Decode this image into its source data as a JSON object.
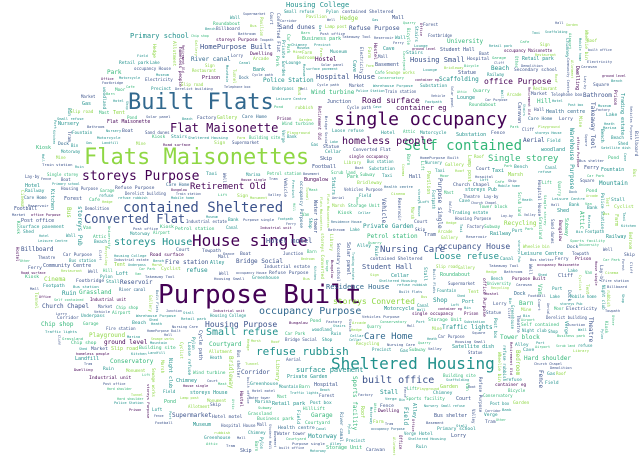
{
  "word_cloud": {
    "palette": {
      "dark_purple": "#440154",
      "indigo": "#3b528b",
      "blue": "#31688e",
      "teal": "#21918c",
      "green": "#35b779",
      "lime": "#8fd744",
      "yellow": "#d8e219"
    },
    "words": [
      {
        "text": "Purpose Built",
        "color": "dark_purple"
      },
      {
        "text": "Flats Maisonettes",
        "color": "lime"
      },
      {
        "text": "Built Flats",
        "color": "blue"
      },
      {
        "text": "single occupancy",
        "color": "dark_purple"
      },
      {
        "text": "House single",
        "color": "dark_purple"
      },
      {
        "text": "Sheltered Housing",
        "color": "teal"
      },
      {
        "text": "contained Sheltered",
        "color": "indigo"
      },
      {
        "text": "Self contained",
        "color": "green"
      },
      {
        "text": "storeys Purpose",
        "color": "dark_purple"
      },
      {
        "text": "Flat Maisonette",
        "color": "dark_purple"
      },
      {
        "text": "Converted Flat",
        "color": "indigo"
      },
      {
        "text": "refuse rubbish",
        "color": "teal"
      },
      {
        "text": "occupancy Purpose",
        "color": "blue"
      },
      {
        "text": "storeys House",
        "color": "teal"
      },
      {
        "text": "Care Home",
        "color": "blue"
      },
      {
        "text": "built office",
        "color": "indigo"
      },
      {
        "text": "homeless people",
        "color": "dark_purple"
      },
      {
        "text": "Small refuse",
        "color": "teal"
      },
      {
        "text": "Retirement Old",
        "color": "dark_purple"
      },
      {
        "text": "Housing Purpose",
        "color": "indigo"
      },
      {
        "text": "Nursing Care",
        "color": "indigo"
      },
      {
        "text": "Loose refuse",
        "color": "teal"
      },
      {
        "text": "occupancy House",
        "color": "indigo"
      },
      {
        "text": "Single storey",
        "color": "green"
      },
      {
        "text": "storeys Converted",
        "color": "lime"
      },
      {
        "text": "Road surface",
        "color": "dark_purple"
      },
      {
        "text": "container eg",
        "color": "dark_purple"
      },
      {
        "text": "office Purpose",
        "color": "dark_purple"
      },
      {
        "text": "Hotel motel",
        "color": "indigo"
      },
      {
        "text": "Student Hall",
        "color": "indigo"
      },
      {
        "text": "surface pavement",
        "color": "teal"
      },
      {
        "text": "Residence House",
        "color": "blue"
      },
      {
        "text": "Housing College",
        "color": "teal"
      },
      {
        "text": "HomePurpose Built",
        "color": "indigo"
      },
      {
        "text": "Primary school",
        "color": "teal"
      },
      {
        "text": "Housing Small",
        "color": "indigo"
      },
      {
        "text": "Hospital House",
        "color": "indigo"
      },
      {
        "text": "Storage Unit",
        "color": "green"
      },
      {
        "text": "Church Chapel",
        "color": "indigo"
      },
      {
        "text": "Private Garden",
        "color": "teal"
      },
      {
        "text": "Car Purpose",
        "color": "indigo"
      },
      {
        "text": "Tower block",
        "color": "green"
      },
      {
        "text": "Industrial unit",
        "color": "dark_purple"
      },
      {
        "text": "Leisure Centre",
        "color": "teal"
      },
      {
        "text": "Vehicles Purpose",
        "color": "indigo"
      },
      {
        "text": "Bus station",
        "color": "teal"
      },
      {
        "text": "Bridge Social",
        "color": "indigo"
      },
      {
        "text": "Car Park",
        "color": "green"
      },
      {
        "text": "Takeaway Tool",
        "color": "indigo"
      },
      {
        "text": "Motorcycle",
        "color": "teal"
      },
      {
        "text": "Cyclist",
        "color": "lime"
      },
      {
        "text": "Refuse Purpose",
        "color": "indigo"
      },
      {
        "text": "Police Station",
        "color": "teal"
      },
      {
        "text": "Fire station",
        "color": "indigo"
      },
      {
        "text": "Bungalow",
        "color": "dark_purple"
      },
      {
        "text": "Garage",
        "color": "green"
      },
      {
        "text": "Shed",
        "color": "teal"
      },
      {
        "text": "Tent",
        "color": "lime"
      },
      {
        "text": "Caravan",
        "color": "indigo"
      },
      {
        "text": "Loft",
        "color": "teal"
      },
      {
        "text": "Health centre",
        "color": "blue"
      },
      {
        "text": "Sports facility",
        "color": "green"
      },
      {
        "text": "Community Centre",
        "color": "indigo"
      },
      {
        "text": "Library",
        "color": "lime"
      },
      {
        "text": "Warehouse Purpose",
        "color": "teal"
      },
      {
        "text": "Scrub land",
        "color": "green"
      },
      {
        "text": "occupancy Maisonette",
        "color": "dark_purple"
      },
      {
        "text": "Purpose single",
        "color": "indigo"
      },
      {
        "text": "storeys Pub",
        "color": "teal"
      },
      {
        "text": "Restaurant",
        "color": "lime"
      },
      {
        "text": "Cafe",
        "color": "green"
      },
      {
        "text": "Factory",
        "color": "indigo"
      },
      {
        "text": "Bin",
        "color": "teal"
      },
      {
        "text": "Wheelie bin",
        "color": "lime"
      },
      {
        "text": "Grassland",
        "color": "green"
      },
      {
        "text": "woodland",
        "color": "teal"
      },
      {
        "text": "Hedge",
        "color": "lime"
      },
      {
        "text": "Fence",
        "color": "indigo"
      },
      {
        "text": "Wall",
        "color": "teal"
      },
      {
        "text": "Derelict building",
        "color": "indigo"
      },
      {
        "text": "Hostel",
        "color": "dark_purple"
      },
      {
        "text": "Nursery",
        "color": "teal"
      },
      {
        "text": "Secondary school",
        "color": "indigo"
      },
      {
        "text": "University",
        "color": "green"
      },
      {
        "text": "Mobile home",
        "color": "teal"
      },
      {
        "text": "Pavilion",
        "color": "lime"
      },
      {
        "text": "Boat",
        "color": "indigo"
      },
      {
        "text": "Railway",
        "color": "teal"
      },
      {
        "text": "Train station",
        "color": "indigo"
      },
      {
        "text": "ground level",
        "color": "dark_purple"
      },
      {
        "text": "Other",
        "color": "green"
      },
      {
        "text": "Hospital",
        "color": "indigo"
      },
      {
        "text": "refuse",
        "color": "teal"
      },
      {
        "text": "rubbish",
        "color": "lime"
      },
      {
        "text": "Vehicle",
        "color": "indigo"
      },
      {
        "text": "Bicycle",
        "color": "green"
      },
      {
        "text": "Gas",
        "color": "teal"
      },
      {
        "text": "Electricity",
        "color": "indigo"
      },
      {
        "text": "Dwelling",
        "color": "dark_purple"
      },
      {
        "text": "Farm",
        "color": "lime"
      },
      {
        "text": "Barn",
        "color": "green"
      },
      {
        "text": "Beach",
        "color": "teal"
      },
      {
        "text": "Cliff",
        "color": "indigo"
      },
      {
        "text": "River canal",
        "color": "blue"
      },
      {
        "text": "Lake",
        "color": "teal"
      },
      {
        "text": "Pond",
        "color": "green"
      },
      {
        "text": "Football",
        "color": "indigo"
      },
      {
        "text": "Playground",
        "color": "lime"
      },
      {
        "text": "Office",
        "color": "dark_purple"
      },
      {
        "text": "Shop",
        "color": "teal"
      },
      {
        "text": "Supermarket",
        "color": "indigo"
      },
      {
        "text": "Petrol station",
        "color": "green"
      },
      {
        "text": "Hotel",
        "color": "teal"
      },
      {
        "text": "Theatre",
        "color": "indigo"
      },
      {
        "text": "Cinema",
        "color": "lime"
      },
      {
        "text": "Night club",
        "color": "teal"
      },
      {
        "text": "Chip shop",
        "color": "green"
      },
      {
        "text": "Post office",
        "color": "indigo"
      },
      {
        "text": "Bank",
        "color": "teal"
      },
      {
        "text": "Prison",
        "color": "dark_purple"
      },
      {
        "text": "Court",
        "color": "indigo"
      },
      {
        "text": "Museum",
        "color": "teal"
      },
      {
        "text": "Gallery",
        "color": "lime"
      },
      {
        "text": "Airport",
        "color": "green"
      },
      {
        "text": "Ferry",
        "color": "indigo"
      },
      {
        "text": "Port",
        "color": "teal"
      },
      {
        "text": "Dock",
        "color": "blue"
      },
      {
        "text": "Marina",
        "color": "teal"
      },
      {
        "text": "Lorry",
        "color": "indigo"
      },
      {
        "text": "Van",
        "color": "green"
      },
      {
        "text": "Bus",
        "color": "lime"
      },
      {
        "text": "Taxi",
        "color": "teal"
      },
      {
        "text": "Tram",
        "color": "indigo"
      },
      {
        "text": "Lift",
        "color": "green"
      },
      {
        "text": "Stairs",
        "color": "teal"
      },
      {
        "text": "Corridor",
        "color": "indigo"
      },
      {
        "text": "Roof",
        "color": "lime"
      },
      {
        "text": "Cellar",
        "color": "teal"
      },
      {
        "text": "Basement",
        "color": "indigo"
      },
      {
        "text": "Attic",
        "color": "green"
      },
      {
        "text": "Kitchen",
        "color": "teal"
      },
      {
        "text": "Bathroom",
        "color": "indigo"
      },
      {
        "text": "Bedroom",
        "color": "lime"
      },
      {
        "text": "Lounge",
        "color": "teal"
      },
      {
        "text": "Hall",
        "color": "indigo"
      },
      {
        "text": "Conservatory",
        "color": "green"
      },
      {
        "text": "Greenhouse",
        "color": "teal"
      },
      {
        "text": "Allotment",
        "color": "lime"
      },
      {
        "text": "Market",
        "color": "indigo"
      },
      {
        "text": "Stall",
        "color": "teal"
      },
      {
        "text": "Kiosk",
        "color": "green"
      },
      {
        "text": "Telephone box",
        "color": "indigo"
      },
      {
        "text": "Post box",
        "color": "teal"
      },
      {
        "text": "Lamp post",
        "color": "lime"
      },
      {
        "text": "Bench",
        "color": "teal"
      },
      {
        "text": "Bus shelter",
        "color": "indigo"
      },
      {
        "text": "Subway",
        "color": "green"
      },
      {
        "text": "Underpass",
        "color": "teal"
      },
      {
        "text": "Footbridge",
        "color": "indigo"
      },
      {
        "text": "Tunnel",
        "color": "lime"
      },
      {
        "text": "Canal",
        "color": "teal"
      },
      {
        "text": "Reservoir",
        "color": "indigo"
      },
      {
        "text": "Quarry",
        "color": "green"
      },
      {
        "text": "Landfill",
        "color": "teal"
      },
      {
        "text": "Recycling",
        "color": "lime"
      },
      {
        "text": "Skip",
        "color": "indigo"
      },
      {
        "text": "Scaffolding",
        "color": "teal"
      },
      {
        "text": "Building site",
        "color": "green"
      },
      {
        "text": "Demolition",
        "color": "indigo"
      },
      {
        "text": "Ruin",
        "color": "teal"
      },
      {
        "text": "Monument",
        "color": "lime"
      },
      {
        "text": "Statue",
        "color": "indigo"
      },
      {
        "text": "Fountain",
        "color": "teal"
      },
      {
        "text": "Park",
        "color": "green"
      },
      {
        "text": "Garden",
        "color": "lime"
      },
      {
        "text": "Field",
        "color": "teal"
      },
      {
        "text": "Forest",
        "color": "indigo"
      },
      {
        "text": "Moor",
        "color": "green"
      },
      {
        "text": "Heath",
        "color": "teal"
      },
      {
        "text": "Marsh",
        "color": "lime"
      },
      {
        "text": "Sand dunes",
        "color": "indigo"
      },
      {
        "text": "Mountain",
        "color": "teal"
      },
      {
        "text": "Hill",
        "color": "green"
      },
      {
        "text": "Valley",
        "color": "indigo"
      },
      {
        "text": "Cave",
        "color": "teal"
      },
      {
        "text": "Mine",
        "color": "lime"
      },
      {
        "text": "Well",
        "color": "indigo"
      },
      {
        "text": "Pylon",
        "color": "teal"
      },
      {
        "text": "Wind turbine",
        "color": "green"
      },
      {
        "text": "Solar panel",
        "color": "indigo"
      },
      {
        "text": "Substation",
        "color": "teal"
      },
      {
        "text": "Sewage works",
        "color": "lime"
      },
      {
        "text": "Water tower",
        "color": "indigo"
      },
      {
        "text": "Chimney",
        "color": "teal"
      },
      {
        "text": "Mast",
        "color": "green"
      },
      {
        "text": "Aerial",
        "color": "indigo"
      },
      {
        "text": "Satellite dish",
        "color": "teal"
      },
      {
        "text": "Sign",
        "color": "lime"
      },
      {
        "text": "Billboard",
        "color": "indigo"
      },
      {
        "text": "Traffic lights",
        "color": "teal"
      },
      {
        "text": "Roundabout",
        "color": "green"
      },
      {
        "text": "Junction",
        "color": "indigo"
      },
      {
        "text": "Motorway",
        "color": "teal"
      },
      {
        "text": "Slip road",
        "color": "lime"
      },
      {
        "text": "Lay-by",
        "color": "indigo"
      },
      {
        "text": "Verge",
        "color": "teal"
      },
      {
        "text": "Hard shoulder",
        "color": "green"
      },
      {
        "text": "Cycle path",
        "color": "indigo"
      },
      {
        "text": "Footpath",
        "color": "teal"
      },
      {
        "text": "Bridleway",
        "color": "lime"
      },
      {
        "text": "Towpath",
        "color": "indigo"
      },
      {
        "text": "Alley",
        "color": "teal"
      },
      {
        "text": "Courtyard",
        "color": "green"
      },
      {
        "text": "Square",
        "color": "indigo"
      },
      {
        "text": "Precinct",
        "color": "teal"
      },
      {
        "text": "Arcade",
        "color": "lime"
      },
      {
        "text": "Mall",
        "color": "indigo"
      },
      {
        "text": "Retail park",
        "color": "teal"
      },
      {
        "text": "Business park",
        "color": "green"
      },
      {
        "text": "Industrial estate",
        "color": "indigo"
      },
      {
        "text": "Trading estate",
        "color": "teal"
      }
    ]
  }
}
